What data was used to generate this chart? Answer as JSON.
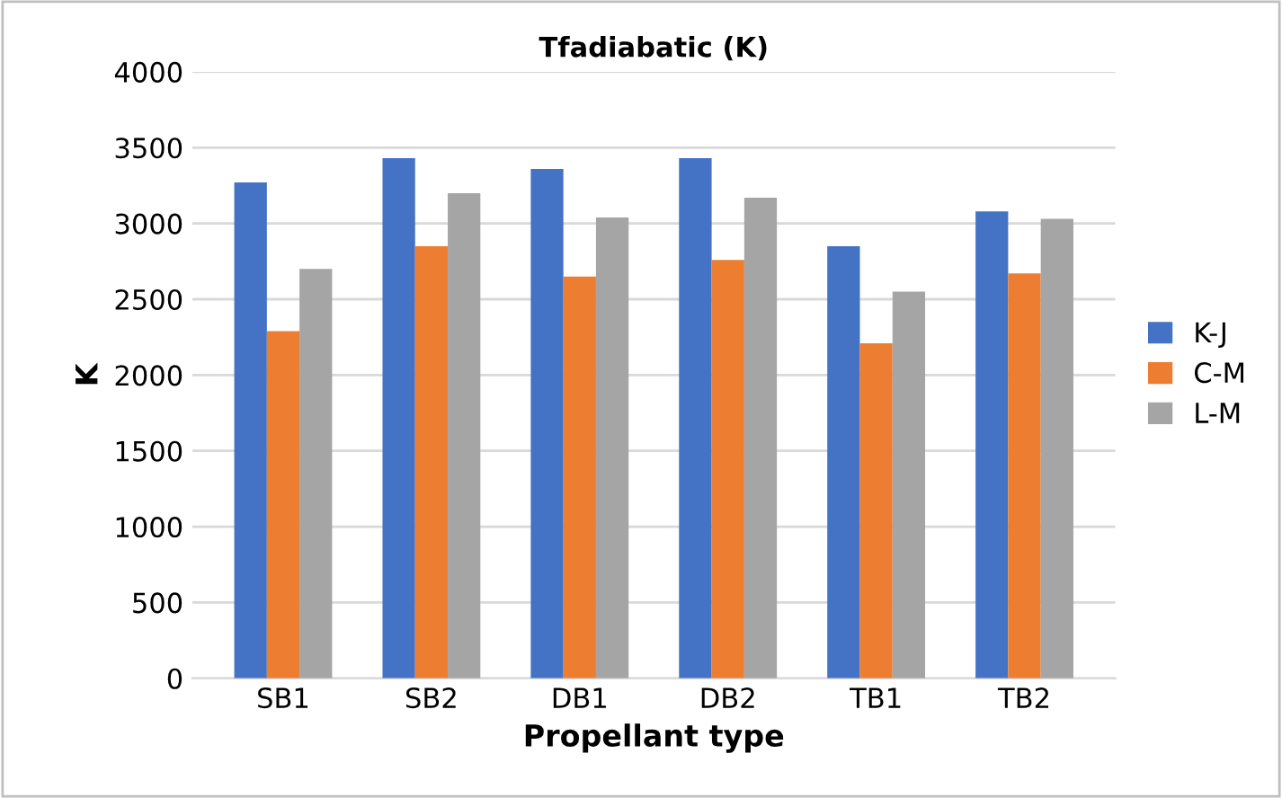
{
  "chart_data": {
    "type": "bar",
    "title": "Tfadiabatic (K)",
    "xlabel": "Propellant type",
    "ylabel": "K",
    "categories": [
      "SB1",
      "SB2",
      "DB1",
      "DB2",
      "TB1",
      "TB2"
    ],
    "series": [
      {
        "name": "K-J",
        "color": "#4472c4",
        "values": [
          3270,
          3430,
          3360,
          3430,
          2850,
          3080
        ]
      },
      {
        "name": "C-M",
        "color": "#ed7d31",
        "values": [
          2290,
          2850,
          2650,
          2760,
          2210,
          2670
        ]
      },
      {
        "name": "L-M",
        "color": "#a5a5a5",
        "values": [
          2700,
          3200,
          3040,
          3170,
          2550,
          3030
        ]
      }
    ],
    "ylim": [
      0,
      4000
    ],
    "yticks": [
      0,
      500,
      1000,
      1500,
      2000,
      2500,
      3000,
      3500,
      4000
    ],
    "grid": "y",
    "legend": "right"
  }
}
